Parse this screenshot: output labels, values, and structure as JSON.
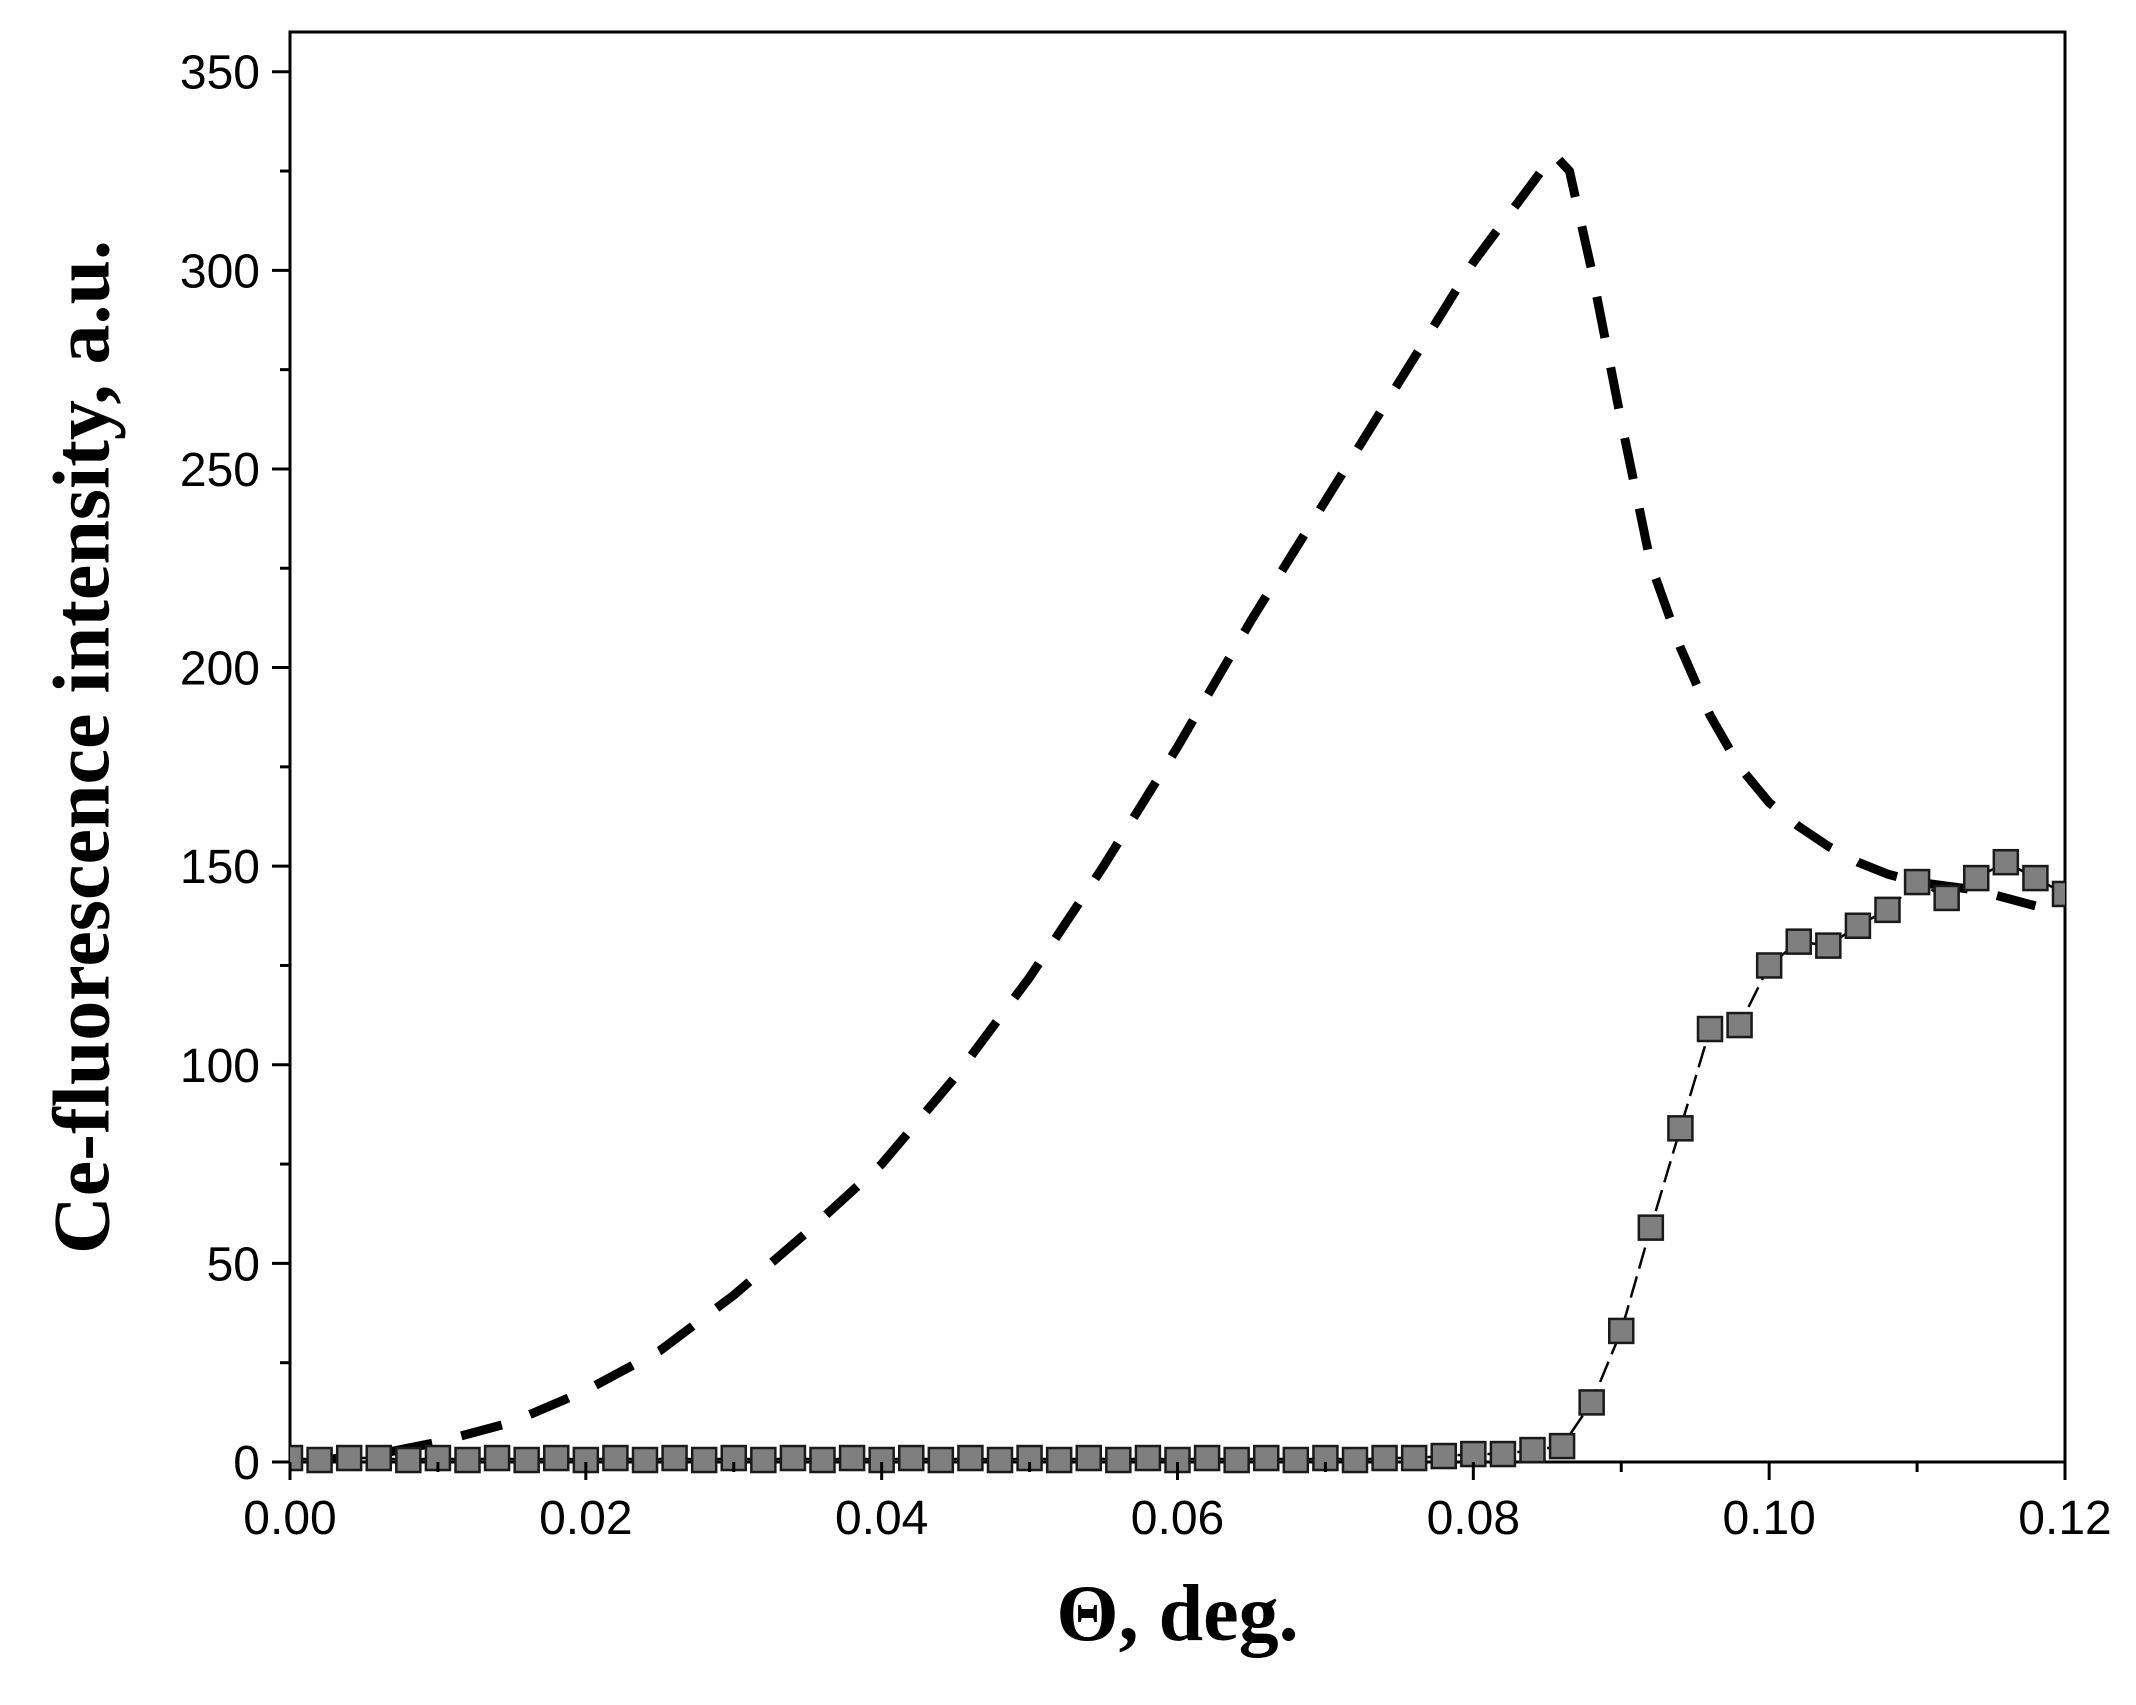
{
  "chart_data": {
    "type": "scatter",
    "title": "",
    "xlabel": "Θ, deg.",
    "ylabel": "Ce-fluorescence intensity, a.u.",
    "xlim": [
      0.0,
      0.12
    ],
    "ylim": [
      0,
      360
    ],
    "x_ticks": [
      0.0,
      0.02,
      0.04,
      0.06,
      0.08,
      0.1,
      0.12
    ],
    "x_tick_labels": [
      "0.00",
      "0.02",
      "0.04",
      "0.06",
      "0.08",
      "0.10",
      "0.12"
    ],
    "y_ticks": [
      0,
      50,
      100,
      150,
      200,
      250,
      300,
      350
    ],
    "y_tick_labels": [
      "0",
      "50",
      "100",
      "150",
      "200",
      "250",
      "300",
      "350"
    ],
    "grid": false,
    "legend": "none",
    "series": [
      {
        "style": "dashed-line",
        "color": "#000000",
        "x": [
          0.002,
          0.004,
          0.006,
          0.008,
          0.01,
          0.015,
          0.02,
          0.025,
          0.03,
          0.035,
          0.04,
          0.045,
          0.05,
          0.055,
          0.06,
          0.065,
          0.07,
          0.075,
          0.08,
          0.082,
          0.084,
          0.085,
          0.0855,
          0.0865,
          0.088,
          0.09,
          0.092,
          0.094,
          0.096,
          0.098,
          0.1,
          0.102,
          0.104,
          0.106,
          0.108,
          0.11,
          0.112,
          0.114,
          0.116,
          0.118
        ],
        "y": [
          0.5,
          1.2,
          2,
          3.5,
          5,
          10,
          18,
          28,
          42,
          58,
          75,
          97,
          122,
          150,
          180,
          212,
          242,
          272,
          302,
          312,
          322,
          327,
          329,
          325,
          300,
          262,
          226,
          205,
          188,
          175,
          166,
          160,
          155,
          151,
          148,
          146,
          145,
          144,
          142,
          140
        ]
      },
      {
        "style": "square-markers-with-thin-dashed-line",
        "color": "#7f7f7f",
        "x": [
          0.0,
          0.002,
          0.004,
          0.006,
          0.008,
          0.01,
          0.012,
          0.014,
          0.016,
          0.018,
          0.02,
          0.022,
          0.024,
          0.026,
          0.028,
          0.03,
          0.032,
          0.034,
          0.036,
          0.038,
          0.04,
          0.042,
          0.044,
          0.046,
          0.048,
          0.05,
          0.052,
          0.054,
          0.056,
          0.058,
          0.06,
          0.062,
          0.064,
          0.066,
          0.068,
          0.07,
          0.072,
          0.074,
          0.076,
          0.078,
          0.08,
          0.082,
          0.084,
          0.086,
          0.088,
          0.09,
          0.092,
          0.094,
          0.096,
          0.098,
          0.1,
          0.102,
          0.104,
          0.106,
          0.108,
          0.11,
          0.112,
          0.114,
          0.116,
          0.118,
          0.12
        ],
        "y": [
          1,
          0.5,
          1,
          1,
          0.5,
          1,
          0.5,
          1,
          0.5,
          1,
          0.5,
          1,
          0.5,
          1,
          0.5,
          1,
          0.5,
          1,
          0.5,
          1,
          0.5,
          1,
          0.5,
          1,
          0.5,
          1,
          0.5,
          1,
          0.5,
          1,
          0.5,
          1,
          0.5,
          1,
          0.5,
          1,
          0.5,
          1,
          1,
          1.5,
          2,
          2,
          3,
          4,
          15,
          33,
          59,
          84,
          109,
          110,
          125,
          131,
          130,
          135,
          139,
          146,
          142,
          147,
          151,
          147,
          143
        ]
      }
    ]
  }
}
